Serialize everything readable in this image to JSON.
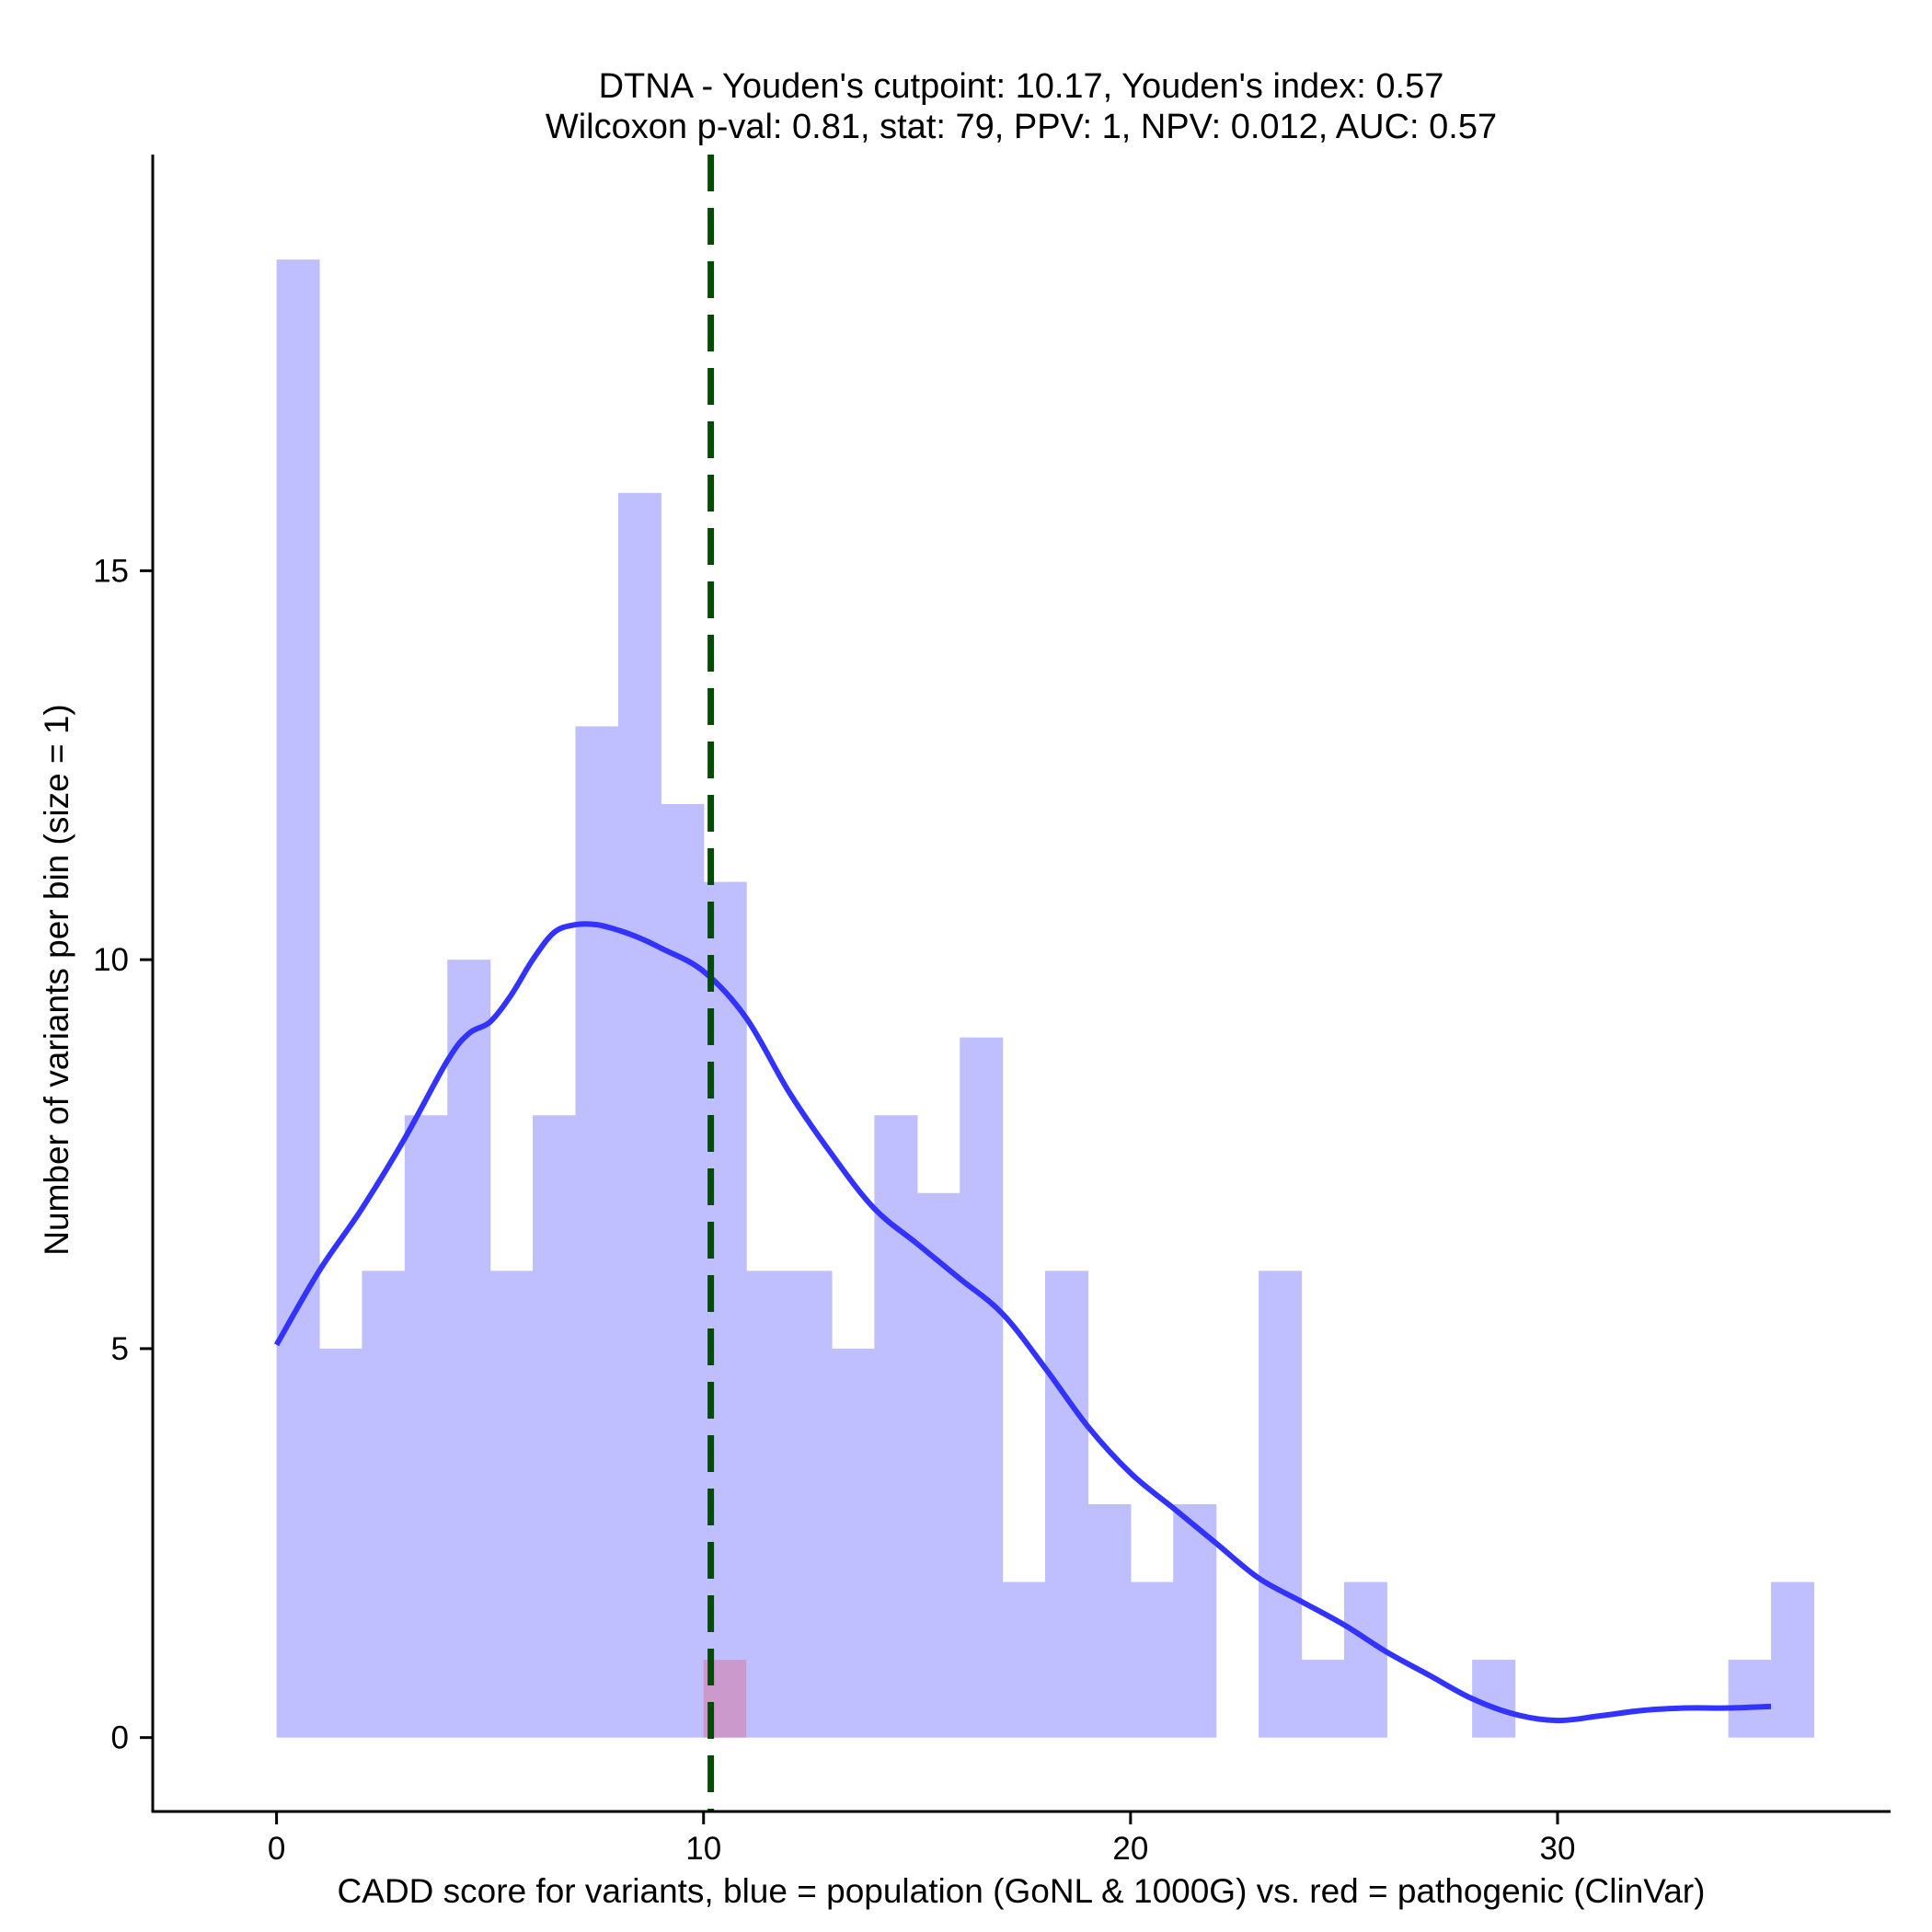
{
  "chart_data": {
    "type": "bar",
    "title_line1": "DTNA - Youden's cutpoint: 10.17, Youden's index: 0.57",
    "title_line2": "Wilcoxon p-val: 0.81, stat: 79, PPV: 1, NPV: 0.012, AUC: 0.57",
    "xlabel": "CADD score for variants, blue = population (GoNL & 1000G) vs. red = pathogenic (ClinVar)",
    "ylabel": "Number of variants per bin (size = 1)",
    "xlim": [
      -2.9,
      37.8
    ],
    "ylim": [
      -0.95,
      20.35
    ],
    "xticks": [
      0,
      10,
      20,
      30
    ],
    "yticks": [
      0,
      5,
      10,
      15
    ],
    "bin_width": 1,
    "cutpoint": 10.17,
    "colors": {
      "population": "#bfbfff",
      "pathogenic": "#cc99cc",
      "density": "#3333ff",
      "cutpoint": "#004d00"
    },
    "series": [
      {
        "name": "population (GoNL & 1000G)",
        "bin_starts": [
          0,
          1,
          2,
          3,
          4,
          5,
          6,
          7,
          8,
          9,
          10,
          11,
          12,
          13,
          14,
          15,
          16,
          17,
          18,
          19,
          20,
          21,
          22,
          23,
          24,
          25,
          26,
          27,
          28,
          29,
          30,
          31,
          32,
          33,
          34,
          35
        ],
        "values": [
          19,
          5,
          6,
          8,
          10,
          6,
          8,
          13,
          16,
          12,
          11,
          6,
          6,
          5,
          8,
          7,
          9,
          2,
          6,
          3,
          2,
          3,
          0,
          6,
          1,
          2,
          0,
          0,
          1,
          0,
          0,
          0,
          0,
          0,
          1,
          2
        ]
      },
      {
        "name": "pathogenic (ClinVar)",
        "bin_starts": [
          10
        ],
        "values": [
          1
        ]
      }
    ],
    "density_curve": {
      "x": [
        0,
        1,
        2,
        3,
        4,
        4.5,
        5,
        5.5,
        6,
        6.5,
        7,
        7.5,
        8,
        8.5,
        9,
        10,
        11,
        12,
        13,
        14,
        15,
        16,
        17,
        18,
        19,
        20,
        21,
        22,
        23,
        24,
        25,
        26,
        27,
        28,
        29,
        30,
        31,
        32,
        33,
        34,
        35
      ],
      "y": [
        5.05,
        6.0,
        6.8,
        7.7,
        8.7,
        9.05,
        9.2,
        9.55,
        10.0,
        10.35,
        10.45,
        10.45,
        10.38,
        10.28,
        10.15,
        9.85,
        9.25,
        8.3,
        7.5,
        6.8,
        6.35,
        5.9,
        5.45,
        4.75,
        4.0,
        3.4,
        2.95,
        2.5,
        2.05,
        1.75,
        1.45,
        1.1,
        0.8,
        0.5,
        0.3,
        0.22,
        0.28,
        0.35,
        0.38,
        0.38,
        0.4
      ]
    }
  }
}
